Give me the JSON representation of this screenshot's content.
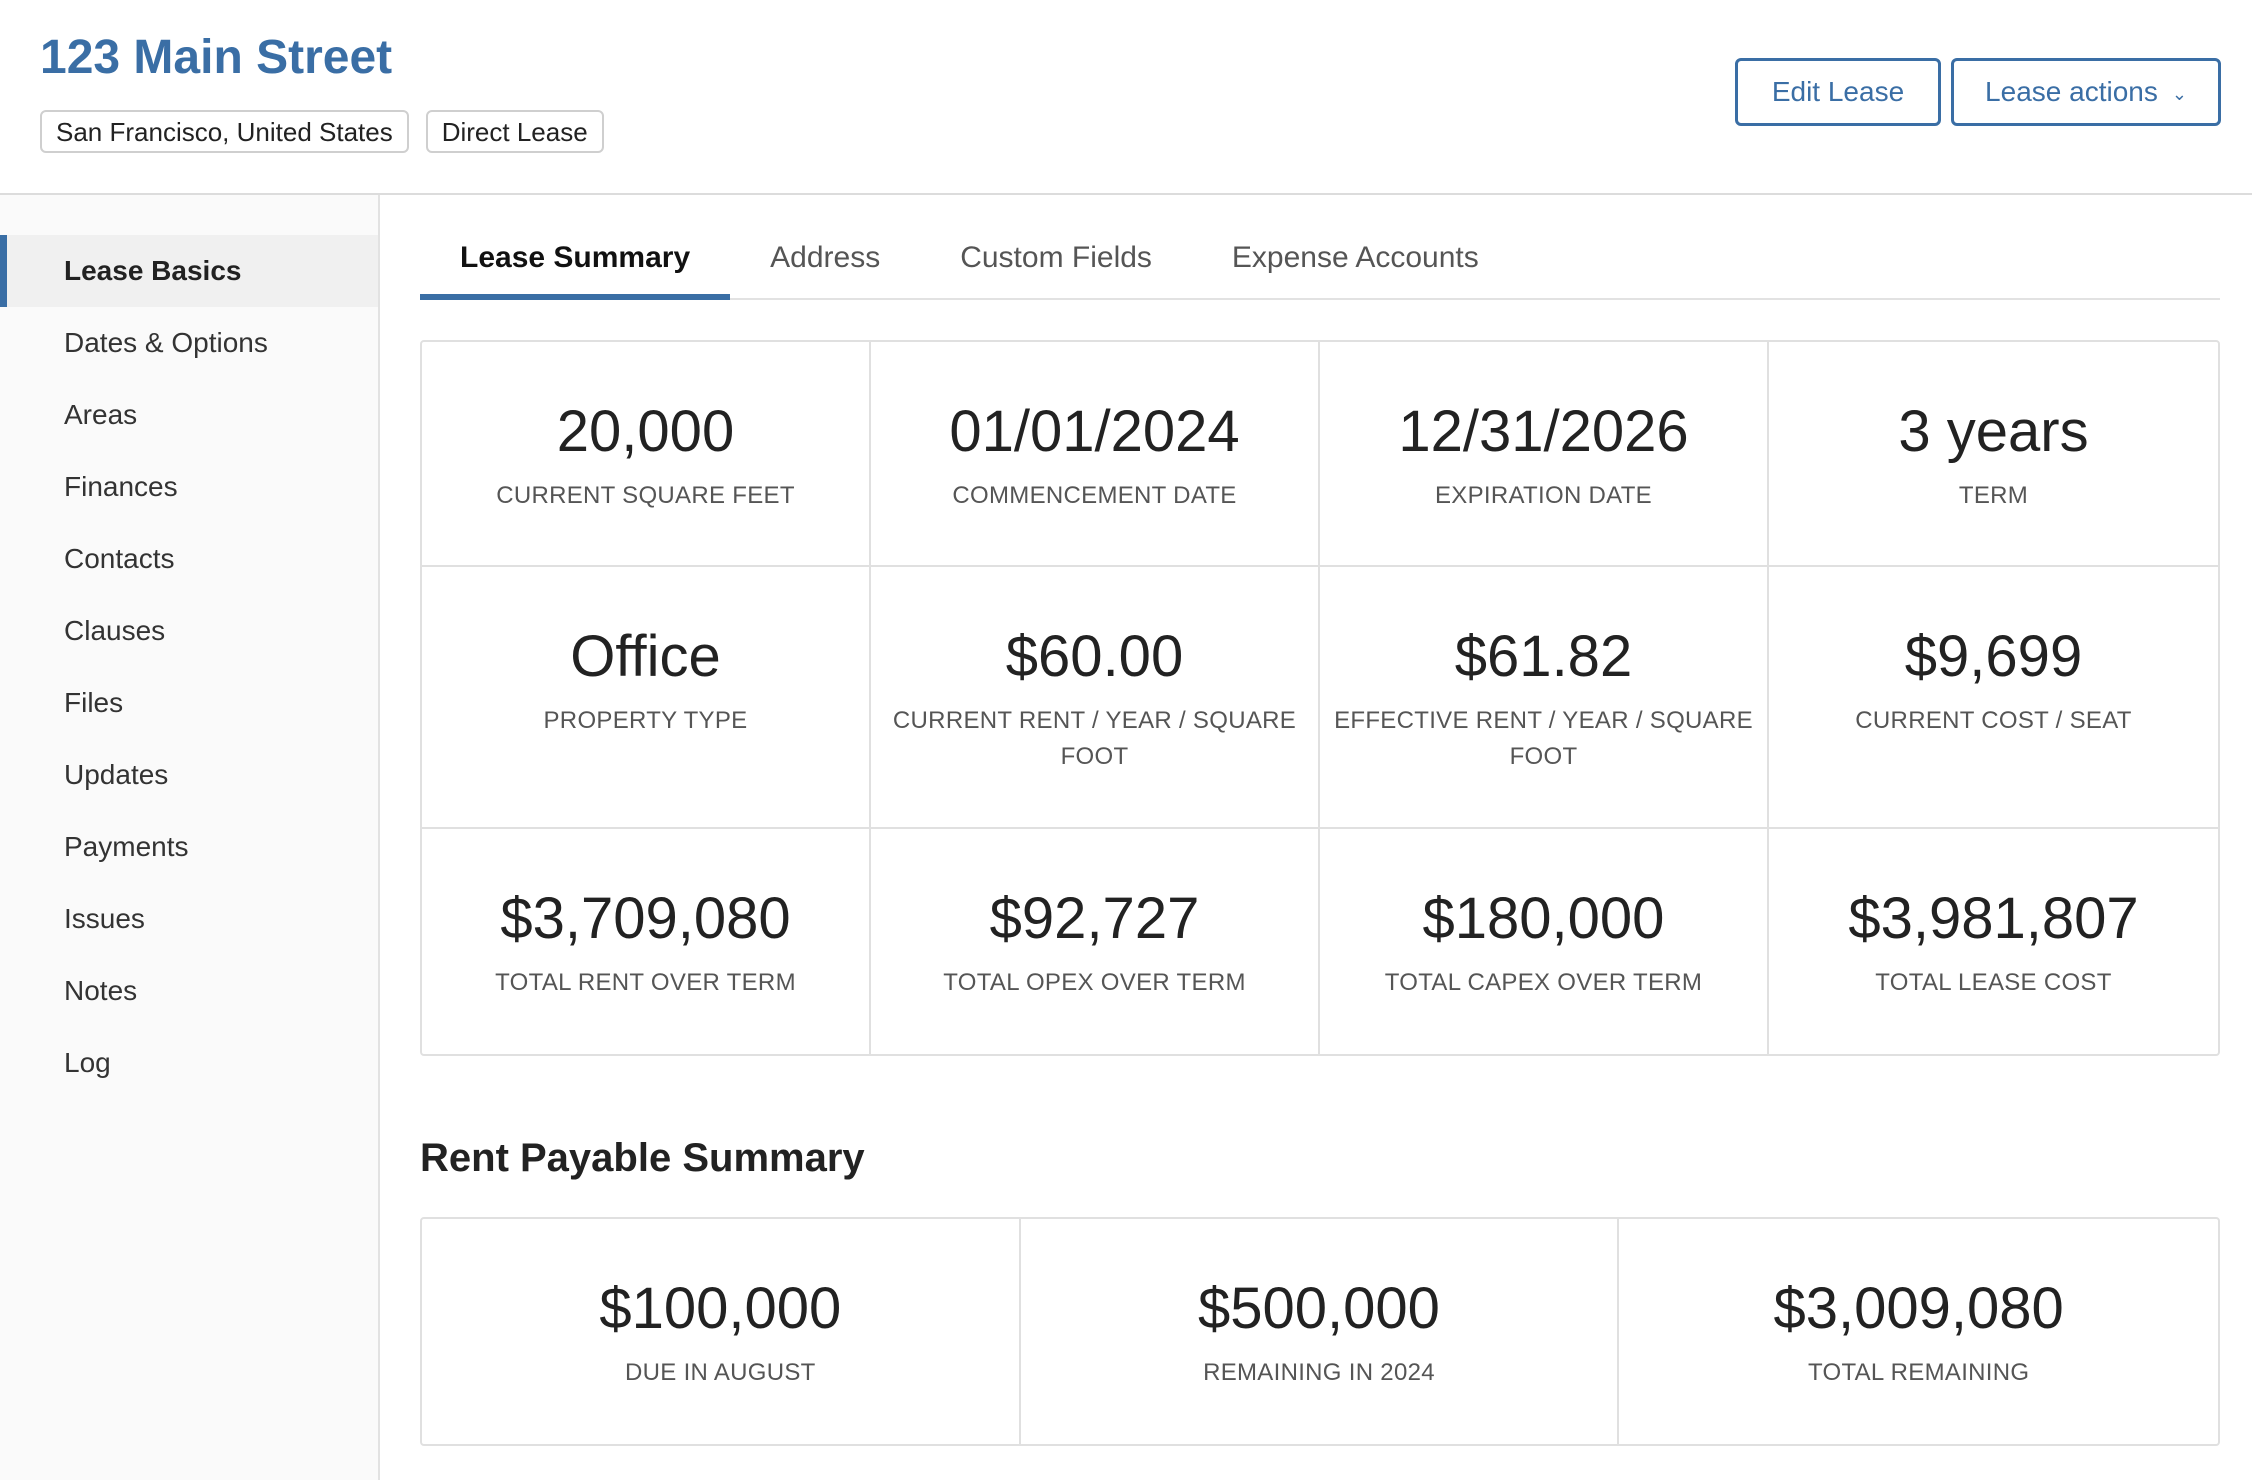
{
  "header": {
    "title": "123 Main Street",
    "tags": [
      "San Francisco, United States",
      "Direct Lease"
    ],
    "edit_label": "Edit Lease",
    "actions_label": "Lease actions",
    "actions_icon": "chevron-down-icon"
  },
  "sidebar": {
    "items": [
      {
        "label": "Lease Basics",
        "active": true
      },
      {
        "label": "Dates & Options"
      },
      {
        "label": "Areas"
      },
      {
        "label": "Finances"
      },
      {
        "label": "Contacts"
      },
      {
        "label": "Clauses"
      },
      {
        "label": "Files"
      },
      {
        "label": "Updates"
      },
      {
        "label": "Payments"
      },
      {
        "label": "Issues"
      },
      {
        "label": "Notes"
      },
      {
        "label": "Log"
      }
    ]
  },
  "tabs": [
    {
      "label": "Lease Summary",
      "active": true
    },
    {
      "label": "Address"
    },
    {
      "label": "Custom Fields"
    },
    {
      "label": "Expense Accounts"
    }
  ],
  "metrics": [
    {
      "value": "20,000",
      "label": "Current Square Feet"
    },
    {
      "value": "01/01/2024",
      "label": "Commencement Date"
    },
    {
      "value": "12/31/2026",
      "label": "Expiration Date"
    },
    {
      "value": "3 years",
      "label": "Term"
    },
    {
      "value": "Office",
      "label": "Property Type"
    },
    {
      "value": "$60.00",
      "label": "Current Rent / Year / Square Foot"
    },
    {
      "value": "$61.82",
      "label": "Effective Rent / Year / Square Foot"
    },
    {
      "value": "$9,699",
      "label": "Current Cost / Seat"
    },
    {
      "value": "$3,709,080",
      "label": "Total Rent Over Term"
    },
    {
      "value": "$92,727",
      "label": "Total Opex Over Term"
    },
    {
      "value": "$180,000",
      "label": "Total Capex Over Term"
    },
    {
      "value": "$3,981,807",
      "label": "Total Lease Cost"
    }
  ],
  "rent_summary": {
    "title": "Rent Payable Summary",
    "items": [
      {
        "value": "$100,000",
        "label": "Due In August"
      },
      {
        "value": "$500,000",
        "label": "Remaining In 2024"
      },
      {
        "value": "$3,009,080",
        "label": "Total Remaining"
      }
    ]
  },
  "colors": {
    "accent": "#3a6ea5",
    "text": "#333333",
    "border": "#e0e0e0"
  }
}
